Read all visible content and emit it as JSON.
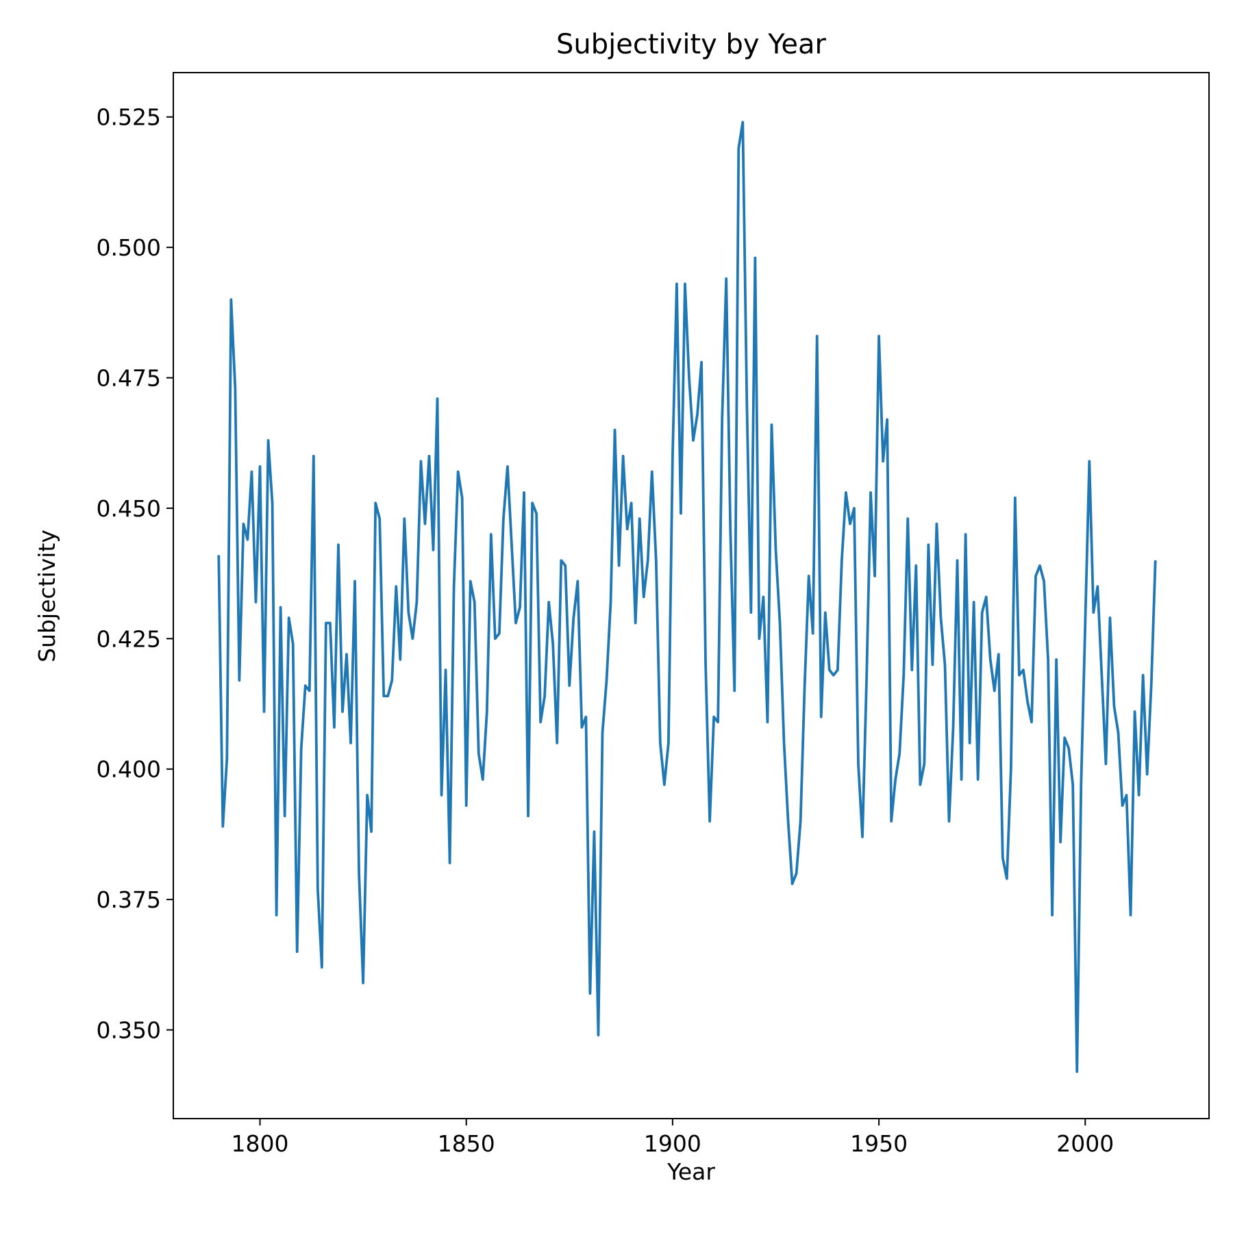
{
  "chart_data": {
    "type": "line",
    "title": "Subjectivity by Year",
    "xlabel": "Year",
    "ylabel": "Subjectivity",
    "xlim": [
      1779,
      2030
    ],
    "ylim": [
      0.333,
      0.5335
    ],
    "xticks": [
      1800,
      1850,
      1900,
      1950,
      2000
    ],
    "yticks": [
      0.35,
      0.375,
      0.4,
      0.425,
      0.45,
      0.475,
      0.5,
      0.525
    ],
    "xtick_labels": [
      "1800",
      "1850",
      "1900",
      "1950",
      "2000"
    ],
    "ytick_labels": [
      "0.350",
      "0.375",
      "0.400",
      "0.425",
      "0.450",
      "0.475",
      "0.500",
      "0.525"
    ],
    "grid": false,
    "color": "#1f77b4",
    "series": [
      {
        "x": [
          1790,
          1791,
          1792,
          1793,
          1794,
          1795,
          1796,
          1797,
          1798,
          1799,
          1800,
          1801,
          1802,
          1803,
          1804,
          1805,
          1806,
          1807,
          1808,
          1809,
          1810,
          1811,
          1812,
          1813,
          1814,
          1815,
          1816,
          1817,
          1818,
          1819,
          1820,
          1821,
          1822,
          1823,
          1824,
          1825,
          1826,
          1827,
          1828,
          1829,
          1830,
          1831,
          1832,
          1833,
          1834,
          1835,
          1836,
          1837,
          1838,
          1839,
          1840,
          1841,
          1842,
          1843,
          1844,
          1845,
          1846,
          1847,
          1848,
          1849,
          1850,
          1851,
          1852,
          1853,
          1854,
          1855,
          1856,
          1857,
          1858,
          1859,
          1860,
          1861,
          1862,
          1863,
          1864,
          1865,
          1866,
          1867,
          1868,
          1869,
          1870,
          1871,
          1872,
          1873,
          1874,
          1875,
          1876,
          1877,
          1878,
          1879,
          1880,
          1881,
          1882,
          1883,
          1884,
          1885,
          1886,
          1887,
          1888,
          1889,
          1890,
          1891,
          1892,
          1893,
          1894,
          1895,
          1896,
          1897,
          1898,
          1899,
          1900,
          1901,
          1902,
          1903,
          1904,
          1905,
          1906,
          1907,
          1908,
          1909,
          1910,
          1911,
          1912,
          1913,
          1914,
          1915,
          1916,
          1917,
          1918,
          1919,
          1920,
          1921,
          1922,
          1923,
          1924,
          1925,
          1926,
          1927,
          1928,
          1929,
          1930,
          1931,
          1932,
          1933,
          1934,
          1935,
          1936,
          1937,
          1938,
          1939,
          1940,
          1941,
          1942,
          1943,
          1944,
          1945,
          1946,
          1947,
          1948,
          1949,
          1950,
          1951,
          1952,
          1953,
          1954,
          1955,
          1956,
          1957,
          1958,
          1959,
          1960,
          1961,
          1962,
          1963,
          1964,
          1965,
          1966,
          1967,
          1968,
          1969,
          1970,
          1971,
          1972,
          1973,
          1974,
          1975,
          1976,
          1977,
          1978,
          1979,
          1980,
          1981,
          1982,
          1983,
          1984,
          1985,
          1986,
          1987,
          1988,
          1989,
          1990,
          1991,
          1992,
          1993,
          1994,
          1995,
          1996,
          1997,
          1998,
          1999,
          2000,
          2001,
          2002,
          2003,
          2004,
          2005,
          2006,
          2007,
          2008,
          2009,
          2010,
          2011,
          2012,
          2013,
          2014,
          2015,
          2016,
          2017
        ],
        "y": [
          0.441,
          0.389,
          0.402,
          0.49,
          0.473,
          0.417,
          0.447,
          0.444,
          0.457,
          0.432,
          0.458,
          0.411,
          0.463,
          0.451,
          0.372,
          0.431,
          0.391,
          0.429,
          0.424,
          0.365,
          0.404,
          0.416,
          0.415,
          0.46,
          0.377,
          0.362,
          0.428,
          0.428,
          0.408,
          0.443,
          0.411,
          0.422,
          0.405,
          0.436,
          0.38,
          0.359,
          0.395,
          0.388,
          0.451,
          0.448,
          0.414,
          0.414,
          0.417,
          0.435,
          0.421,
          0.448,
          0.43,
          0.425,
          0.432,
          0.459,
          0.447,
          0.46,
          0.442,
          0.471,
          0.395,
          0.419,
          0.382,
          0.435,
          0.457,
          0.452,
          0.393,
          0.436,
          0.432,
          0.403,
          0.398,
          0.411,
          0.445,
          0.425,
          0.426,
          0.448,
          0.458,
          0.443,
          0.428,
          0.431,
          0.453,
          0.391,
          0.451,
          0.449,
          0.409,
          0.414,
          0.432,
          0.424,
          0.405,
          0.44,
          0.439,
          0.416,
          0.429,
          0.436,
          0.408,
          0.41,
          0.357,
          0.388,
          0.349,
          0.407,
          0.417,
          0.432,
          0.465,
          0.439,
          0.46,
          0.446,
          0.451,
          0.428,
          0.448,
          0.433,
          0.44,
          0.457,
          0.44,
          0.405,
          0.397,
          0.405,
          0.46,
          0.493,
          0.449,
          0.493,
          0.475,
          0.463,
          0.468,
          0.478,
          0.42,
          0.39,
          0.41,
          0.409,
          0.467,
          0.494,
          0.446,
          0.415,
          0.519,
          0.524,
          0.47,
          0.43,
          0.498,
          0.425,
          0.433,
          0.409,
          0.466,
          0.442,
          0.428,
          0.405,
          0.39,
          0.378,
          0.38,
          0.39,
          0.416,
          0.437,
          0.426,
          0.483,
          0.41,
          0.43,
          0.419,
          0.418,
          0.419,
          0.44,
          0.453,
          0.447,
          0.45,
          0.401,
          0.387,
          0.417,
          0.453,
          0.437,
          0.483,
          0.459,
          0.467,
          0.39,
          0.398,
          0.403,
          0.418,
          0.448,
          0.419,
          0.439,
          0.397,
          0.401,
          0.443,
          0.42,
          0.447,
          0.429,
          0.42,
          0.39,
          0.408,
          0.44,
          0.398,
          0.445,
          0.405,
          0.432,
          0.398,
          0.43,
          0.433,
          0.421,
          0.415,
          0.422,
          0.383,
          0.379,
          0.4,
          0.452,
          0.418,
          0.419,
          0.413,
          0.409,
          0.437,
          0.439,
          0.436,
          0.421,
          0.372,
          0.421,
          0.386,
          0.406,
          0.404,
          0.397,
          0.342,
          0.397,
          0.428,
          0.459,
          0.43,
          0.435,
          0.418,
          0.401,
          0.429,
          0.412,
          0.407,
          0.393,
          0.395,
          0.372,
          0.411,
          0.395,
          0.418,
          0.399,
          0.416,
          0.44
        ]
      }
    ]
  }
}
